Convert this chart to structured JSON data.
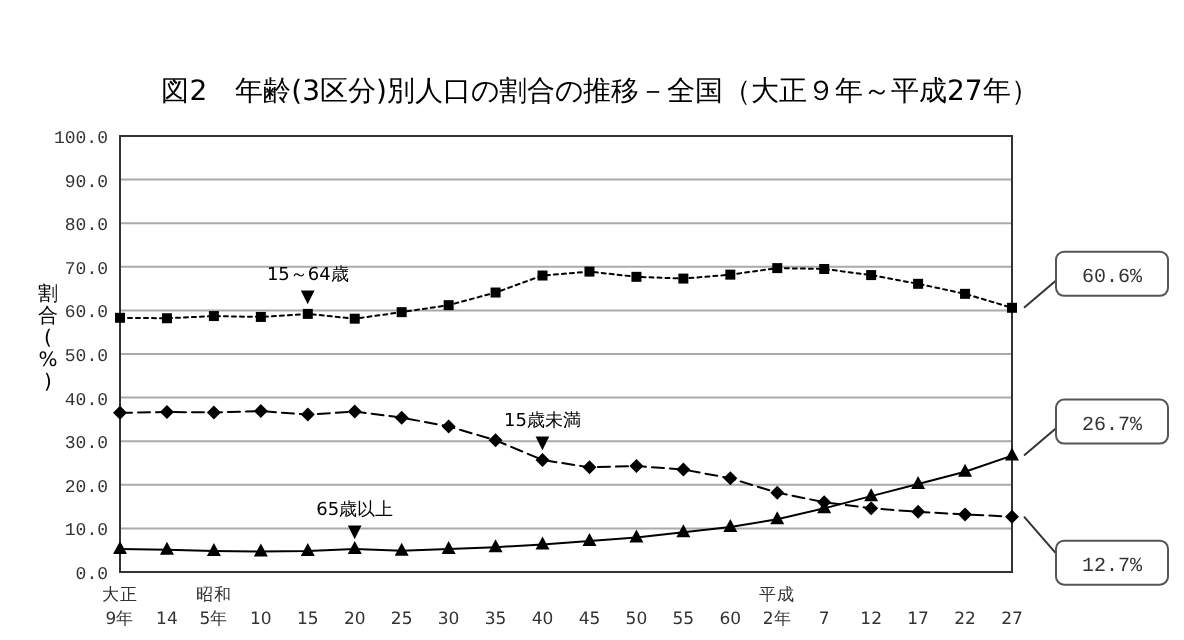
{
  "chart_data": {
    "type": "line",
    "title": "図2　年齢(3区分)別人口の割合の推移－全国（大正９年～平成27年）",
    "ylabel": "割合(%)",
    "categories": [
      "大正\n9年",
      "14",
      "昭和\n5年",
      "10",
      "15",
      "20",
      "25",
      "30",
      "35",
      "40",
      "45",
      "50",
      "55",
      "60",
      "平成\n2年",
      "7",
      "12",
      "17",
      "22",
      "27"
    ],
    "series": [
      {
        "color": "#000000",
        "marker": "square",
        "line_style": "dotted",
        "values": [
          58.3,
          58.2,
          58.7,
          58.5,
          59.2,
          58.1,
          59.6,
          61.2,
          64.1,
          68.0,
          68.9,
          67.7,
          67.3,
          68.2,
          69.7,
          69.5,
          68.1,
          66.1,
          63.8,
          60.6
        ],
        "value_labels": [
          null,
          null,
          null,
          null,
          null,
          null,
          null,
          null,
          null,
          null,
          null,
          null,
          null,
          null,
          null,
          null,
          null,
          null,
          null,
          "60.6%"
        ]
      },
      {
        "color": "#000000",
        "marker": "diamond",
        "line_style": "dashed",
        "values": [
          36.5,
          36.7,
          36.6,
          36.9,
          36.1,
          36.8,
          35.4,
          33.4,
          30.2,
          25.7,
          24.0,
          24.3,
          23.5,
          21.5,
          18.2,
          16.0,
          14.6,
          13.8,
          13.2,
          12.7
        ],
        "value_labels": [
          null,
          null,
          null,
          null,
          null,
          null,
          null,
          null,
          null,
          null,
          null,
          null,
          null,
          null,
          null,
          null,
          null,
          null,
          null,
          "12.7%"
        ]
      },
      {
        "color": "#000000",
        "marker": "triangle",
        "line_style": "solid",
        "values": [
          5.3,
          5.1,
          4.8,
          4.7,
          4.8,
          5.3,
          4.9,
          5.3,
          5.7,
          6.3,
          7.1,
          7.9,
          9.1,
          10.3,
          12.1,
          14.6,
          17.4,
          20.2,
          23.0,
          26.7
        ],
        "value_labels": [
          null,
          null,
          null,
          null,
          null,
          null,
          null,
          null,
          null,
          null,
          null,
          null,
          null,
          null,
          null,
          null,
          null,
          null,
          null,
          "26.7%"
        ]
      }
    ],
    "ylim": [
      0,
      100
    ],
    "yticks": [
      {
        "value": 0,
        "label": "0.0"
      },
      {
        "value": 10,
        "label": "10.0"
      },
      {
        "value": 20,
        "label": "20.0"
      },
      {
        "value": 30,
        "label": "30.0"
      },
      {
        "value": 40,
        "label": "40.0"
      },
      {
        "value": 50,
        "label": "50.0"
      },
      {
        "value": 60,
        "label": "60.0"
      },
      {
        "value": 70,
        "label": "70.0"
      },
      {
        "value": 80,
        "label": "80.0"
      },
      {
        "value": 90,
        "label": "90.0"
      },
      {
        "value": 100,
        "label": "100.0"
      }
    ],
    "annotations": [
      {
        "text": "15～64歳\n▼",
        "x": "15",
        "y": 59.2
      },
      {
        "text": "15歳未満\n▼",
        "x": "40",
        "y": 25.7
      },
      {
        "text": "65歳以上\n▼",
        "x": "20",
        "y": 5.3
      }
    ],
    "grid": "y",
    "legend": false
  }
}
